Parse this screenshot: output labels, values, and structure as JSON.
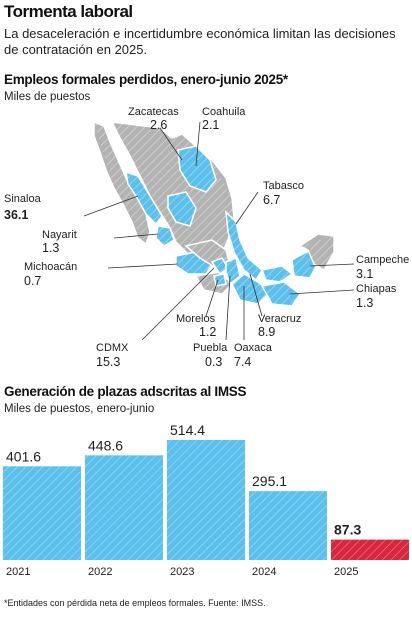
{
  "header": {
    "title": "Tormenta laboral",
    "subtitle": "La desaceleración e incertidumbre económica limitan las decisiones de contratación en 2025."
  },
  "map_section": {
    "title": "Empleos formales perdidos, enero-junio 2025*",
    "subtitle": "Miles de puestos",
    "colors": {
      "highlight": "#5bc0eb",
      "other": "#b3b3b3",
      "leader": "#333333"
    }
  },
  "bar_section": {
    "title": "Generación de plazas adscritas al IMSS",
    "subtitle": "Miles de puestos, enero-junio",
    "colors": {
      "normal": "#5bc0eb",
      "highlight": "#d7263d"
    }
  },
  "footnote": "*Entidades con pérdida neta de empleos formales. Fuente: IMSS.",
  "chart_data": [
    {
      "type": "map",
      "title": "Empleos formales perdidos, enero-junio 2025*",
      "unit": "Miles de puestos",
      "states": [
        {
          "name": "Zacatecas",
          "value": "2.6"
        },
        {
          "name": "Coahuila",
          "value": "2.1"
        },
        {
          "name": "Sinaloa",
          "value": "36.1"
        },
        {
          "name": "Tabasco",
          "value": "6.7"
        },
        {
          "name": "Nayarit",
          "value": "1.3"
        },
        {
          "name": "Michoacán",
          "value": "0.7"
        },
        {
          "name": "Campeche",
          "value": "3.1"
        },
        {
          "name": "Chiapas",
          "value": "1.3"
        },
        {
          "name": "Morelos",
          "value": "1.2"
        },
        {
          "name": "Veracruz",
          "value": "8.9"
        },
        {
          "name": "CDMX",
          "value": "15.3"
        },
        {
          "name": "Puebla",
          "value": "0.3"
        },
        {
          "name": "Oaxaca",
          "value": "7.4"
        }
      ]
    },
    {
      "type": "bar",
      "title": "Generación de plazas adscritas al IMSS",
      "ylabel": "Miles de puestos, enero-junio",
      "categories": [
        "2021",
        "2022",
        "2023",
        "2024",
        "2025"
      ],
      "values": [
        401.6,
        448.6,
        514.4,
        295.1,
        87.3
      ],
      "value_labels": [
        "401.6",
        "448.6",
        "514.4",
        "295.1",
        "87.3"
      ],
      "highlight": "2025",
      "ylim": [
        0,
        514.4
      ]
    }
  ]
}
